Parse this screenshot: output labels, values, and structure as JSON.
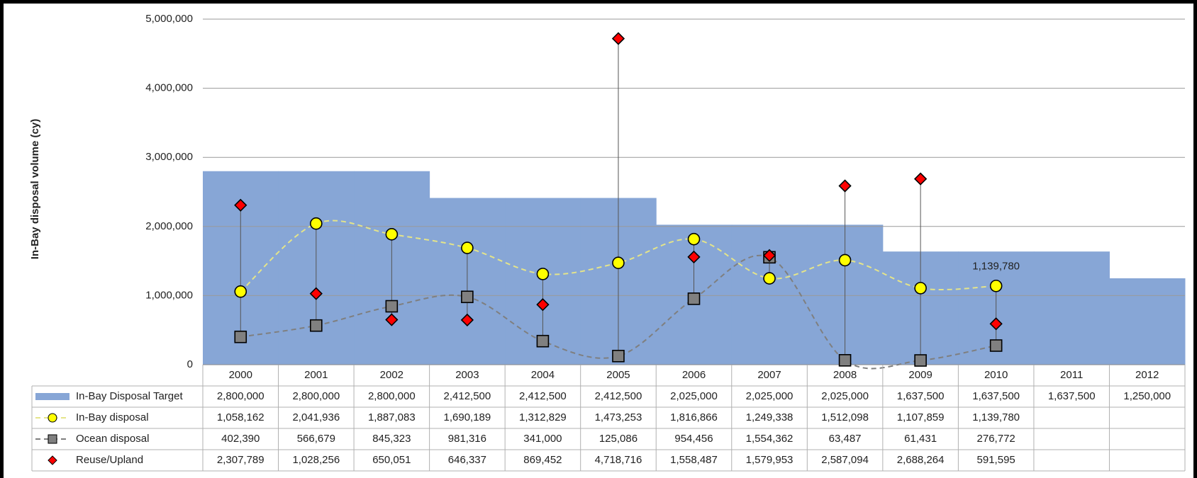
{
  "chart_data": {
    "type": "combo",
    "y_axis_label": "In-Bay disposal volume (cy)",
    "categories": [
      "2000",
      "2001",
      "2002",
      "2003",
      "2004",
      "2005",
      "2006",
      "2007",
      "2008",
      "2009",
      "2010",
      "2011",
      "2012"
    ],
    "ylim": [
      0,
      5000000
    ],
    "yticks": [
      0,
      {
        "value": 1000000,
        "label": "1,000,000"
      },
      {
        "value": 2000000,
        "label": "2,000,000"
      },
      {
        "value": 3000000,
        "label": "3,000,000"
      },
      {
        "value": 4000000,
        "label": "4,000,000"
      },
      {
        "value": 5000000,
        "label": "5,000,000"
      }
    ],
    "grid": true,
    "series": [
      {
        "name": "In-Bay Disposal Target",
        "type": "step-area",
        "color": "#87a6d6",
        "values": [
          2800000,
          2800000,
          2800000,
          2412500,
          2412500,
          2412500,
          2025000,
          2025000,
          2025000,
          1637500,
          1637500,
          1637500,
          1250000
        ],
        "value_labels": [
          "2,800,000",
          "2,800,000",
          "2,800,000",
          "2,412,500",
          "2,412,500",
          "2,412,500",
          "2,025,000",
          "2,025,000",
          "2,025,000",
          "1,637,500",
          "1,637,500",
          "1,637,500",
          "1,250,000"
        ]
      },
      {
        "name": "In-Bay disposal",
        "type": "line",
        "marker": "circle",
        "color": "#ffff00",
        "line_color": "#e4e48a",
        "values": [
          1058162,
          2041936,
          1887083,
          1690189,
          1312829,
          1473253,
          1816866,
          1249338,
          1512098,
          1107859,
          1139780,
          null,
          null
        ],
        "value_labels": [
          "1,058,162",
          "2,041,936",
          "1,887,083",
          "1,690,189",
          "1,312,829",
          "1,473,253",
          "1,816,866",
          "1,249,338",
          "1,512,098",
          "1,107,859",
          "1,139,780",
          null,
          null
        ],
        "annotated_index": 10
      },
      {
        "name": "Ocean disposal",
        "type": "line",
        "marker": "square",
        "color": "#808080",
        "line_color": "#7f7f7f",
        "values": [
          402390,
          566679,
          845323,
          981316,
          341000,
          125086,
          954456,
          1554362,
          63487,
          61431,
          276772,
          null,
          null
        ],
        "value_labels": [
          "402,390",
          "566,679",
          "845,323",
          "981,316",
          "341,000",
          "125,086",
          "954,456",
          "1,554,362",
          "63,487",
          "61,431",
          "276,772",
          null,
          null
        ]
      },
      {
        "name": "Reuse/Upland",
        "type": "scatter",
        "marker": "diamond",
        "color": "#ff0000",
        "values": [
          2307789,
          1028256,
          650051,
          646337,
          869452,
          4718716,
          1558487,
          1579953,
          2587094,
          2688264,
          591595,
          null,
          null
        ],
        "value_labels": [
          "2,307,789",
          "1,028,256",
          "650,051",
          "646,337",
          "869,452",
          "4,718,716",
          "1,558,487",
          "1,579,953",
          "2,587,094",
          "2,688,264",
          "591,595",
          null,
          null
        ]
      }
    ]
  }
}
